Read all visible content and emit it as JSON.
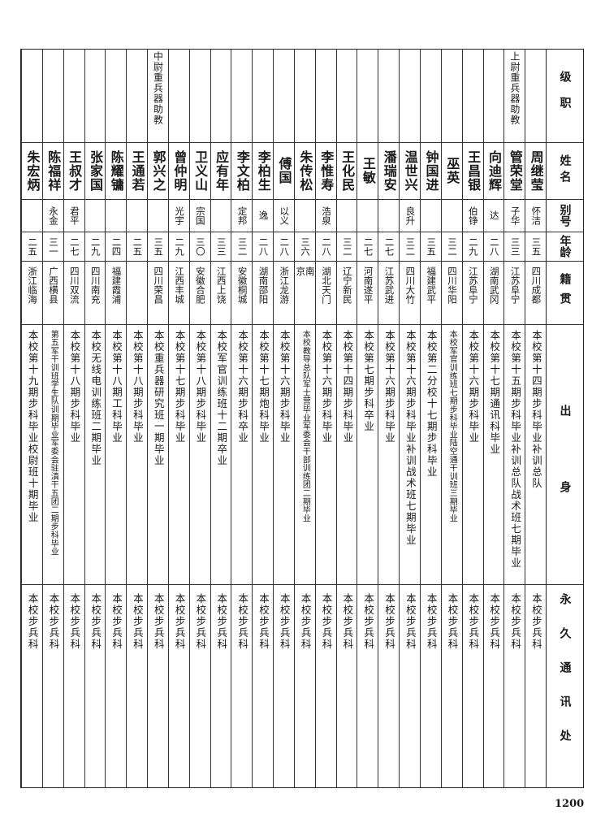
{
  "headers": {
    "rank": "级职",
    "name": "姓名",
    "alias": "别号",
    "age": "年龄",
    "native": "籍贯",
    "origin": "出身",
    "address": "永久通讯处"
  },
  "rows": [
    {
      "rank": "",
      "name": "周继莹",
      "alias": "怀洁",
      "age": "三五",
      "native": "四川成都",
      "origin": "本校第十四期步科毕业补训总队",
      "address": "本校步兵科"
    },
    {
      "rank": "上尉重兵器助教",
      "name": "管荣堂",
      "alias": "子华",
      "age": "三三",
      "native": "江苏阜宁",
      "origin": "本校第十五期步科毕业补训总队战术班七期毕业",
      "address": "本校步兵科"
    },
    {
      "rank": "",
      "name": "向迪辉",
      "alias": "达",
      "age": "二八",
      "native": "湖南武冈",
      "origin": "本校第十七期通讯科毕业",
      "address": "本校步兵科"
    },
    {
      "rank": "",
      "name": "王昌银",
      "alias": "伯铮",
      "age": "二九",
      "native": "江苏阜宁",
      "origin": "本校第十六期步科毕业",
      "address": "本校步兵科"
    },
    {
      "rank": "",
      "name": "巫英",
      "alias": "",
      "age": "三二",
      "native": "四川华阳",
      "origin": "本校军官训练班七期步科毕业陆空通干训班三期毕业",
      "address": "本校步兵科"
    },
    {
      "rank": "",
      "name": "钟国进",
      "alias": "",
      "age": "三五",
      "native": "福建武平",
      "origin": "本校第二分校十七期步科毕业",
      "address": "本校步兵科"
    },
    {
      "rank": "",
      "name": "温世兴",
      "alias": "良升",
      "age": "三二",
      "native": "四川大竹",
      "origin": "本校第十六期步科毕业补训战术班七期毕业",
      "address": "本校步兵科"
    },
    {
      "rank": "",
      "name": "潘瑞安",
      "alias": "",
      "age": "二七",
      "native": "江苏武进",
      "origin": "本校第十六期步科毕业",
      "address": "本校步兵科"
    },
    {
      "rank": "",
      "name": "王敏",
      "alias": "",
      "age": "二七",
      "native": "河南遂平",
      "origin": "本校第七期步科卒业",
      "address": "本校步兵科"
    },
    {
      "rank": "",
      "name": "王化民",
      "alias": "",
      "age": "三二",
      "native": "辽宁新民",
      "origin": "本校第十四期步科毕业",
      "address": "本校步兵科"
    },
    {
      "rank": "",
      "name": "李惟寿",
      "alias": "浩泉",
      "age": "二八",
      "native": "湖北天门",
      "origin": "本校第十六期步科毕业",
      "address": "本校步兵科"
    },
    {
      "rank": "",
      "name": "朱传松",
      "alias": "",
      "age": "三六",
      "native": "南京",
      "origin": "本校教导总队军士营毕业军委会干部训练团二期毕业",
      "address": "本校步兵科"
    },
    {
      "rank": "",
      "name": "傅国",
      "alias": "以义",
      "age": "二八",
      "native": "浙江龙游",
      "origin": "本校第十六期步科毕业",
      "address": "本校步兵科"
    },
    {
      "rank": "",
      "name": "李柏生",
      "alias": "逸",
      "age": "二八",
      "native": "湖南邵阳",
      "origin": "本校第十七期炮科毕业",
      "address": "本校步兵科"
    },
    {
      "rank": "",
      "name": "李文柏",
      "alias": "定邦",
      "age": "三二",
      "native": "安徽桐城",
      "origin": "本校第十六期步科卒业",
      "address": "本校步兵科"
    },
    {
      "rank": "",
      "name": "应有年",
      "alias": "",
      "age": "三三",
      "native": "江西上饶",
      "origin": "本校军官训练班十二期卒业",
      "address": "本校步兵科"
    },
    {
      "rank": "",
      "name": "卫义山",
      "alias": "宗国",
      "age": "三〇",
      "native": "安徽合肥",
      "origin": "本校第十八期步科毕业",
      "address": "本校步兵科"
    },
    {
      "rank": "",
      "name": "曾仲明",
      "alias": "光宇",
      "age": "二九",
      "native": "江西丰城",
      "origin": "本校第十七期步科毕业",
      "address": "本校步兵科"
    },
    {
      "rank": "中尉重兵器助教",
      "name": "郭兴之",
      "alias": "",
      "age": "三五",
      "native": "四川荣昌",
      "origin": "本校重兵器研究班一期毕业",
      "address": "本校步兵科"
    },
    {
      "rank": "",
      "name": "王通若",
      "alias": "",
      "age": "二五",
      "native": "",
      "origin": "本校第十八期步科毕业",
      "address": "本校步兵科"
    },
    {
      "rank": "",
      "name": "陈耀镛",
      "alias": "",
      "age": "二四",
      "native": "福建霞浦",
      "origin": "本校第十八期工科毕业",
      "address": "本校步兵科"
    },
    {
      "rank": "",
      "name": "张家国",
      "alias": "",
      "age": "二九",
      "native": "四川南充",
      "origin": "本校无线电训练班二期毕业",
      "address": "本校步兵科"
    },
    {
      "rank": "",
      "name": "王叔才",
      "alias": "君平",
      "age": "二七",
      "native": "四川双流",
      "origin": "本校第十八期步科毕业",
      "address": "本校步兵科"
    },
    {
      "rank": "",
      "name": "陈福祥",
      "alias": "永金",
      "age": "三一",
      "native": "广西横县",
      "origin": "第五军干训班学生队训期毕业军委会驻滇干五团二期步科毕业",
      "address": "本校步兵科"
    },
    {
      "rank": "",
      "name": "朱宏炳",
      "alias": "",
      "age": "二五",
      "native": "浙江临海",
      "origin": "本校第十九期步科毕业校尉班十期毕业",
      "address": "本校步兵科"
    }
  ],
  "page_number": "1200"
}
